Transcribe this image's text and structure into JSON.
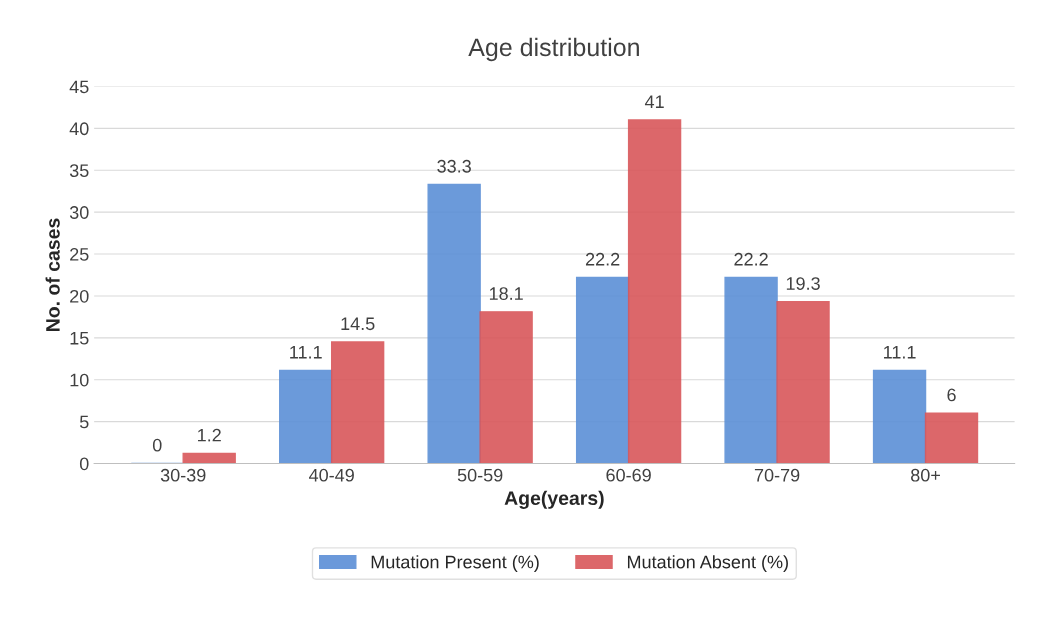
{
  "chart_data": {
    "type": "bar",
    "title": "Age distribution",
    "xlabel": "Age(years)",
    "ylabel": "No. of cases",
    "categories": [
      "30-39",
      "40-49",
      "50-59",
      "60-69",
      "70-79",
      "80+"
    ],
    "series": [
      {
        "name": "Mutation Present (%)",
        "color": "#5b8fd6",
        "values": [
          0,
          11.1,
          33.3,
          22.2,
          22.2,
          11.1
        ]
      },
      {
        "name": "Mutation Absent (%)",
        "color": "#d9575a",
        "values": [
          1.2,
          14.5,
          18.1,
          41,
          19.3,
          6
        ]
      }
    ],
    "ylim": [
      0,
      45
    ],
    "yticks": [
      0,
      5,
      10,
      15,
      20,
      25,
      30,
      35,
      40,
      45
    ],
    "grid": "y",
    "legend": "bottom",
    "data_labels": true
  }
}
